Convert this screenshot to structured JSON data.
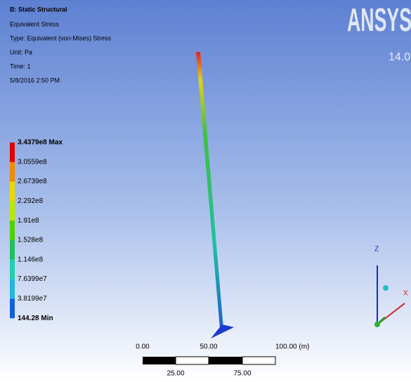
{
  "header": {
    "title": "B: Static Structural",
    "lines": [
      "Equivalent Stress",
      "Type: Equivalent (von-Mises) Stress",
      "Unit: Pa",
      "Time: 1",
      "5/8/2016 2:50 PM"
    ]
  },
  "legend": {
    "labels": [
      "3.4379e8 Max",
      "3.0559e8",
      "2.6739e8",
      "2.292e8",
      "1.91e8",
      "1.528e8",
      "1.146e8",
      "7.6399e7",
      "3.8199e7",
      "144.28 Min"
    ]
  },
  "logo": {
    "brand": "ANSYS",
    "version": "14.0"
  },
  "scale_bar": {
    "top_labels": [
      "0.00",
      "50.00",
      "100.00 (m)"
    ],
    "bottom_labels": [
      "25.00",
      "75.00"
    ]
  },
  "triad": {
    "z": "Z",
    "x": "X"
  }
}
